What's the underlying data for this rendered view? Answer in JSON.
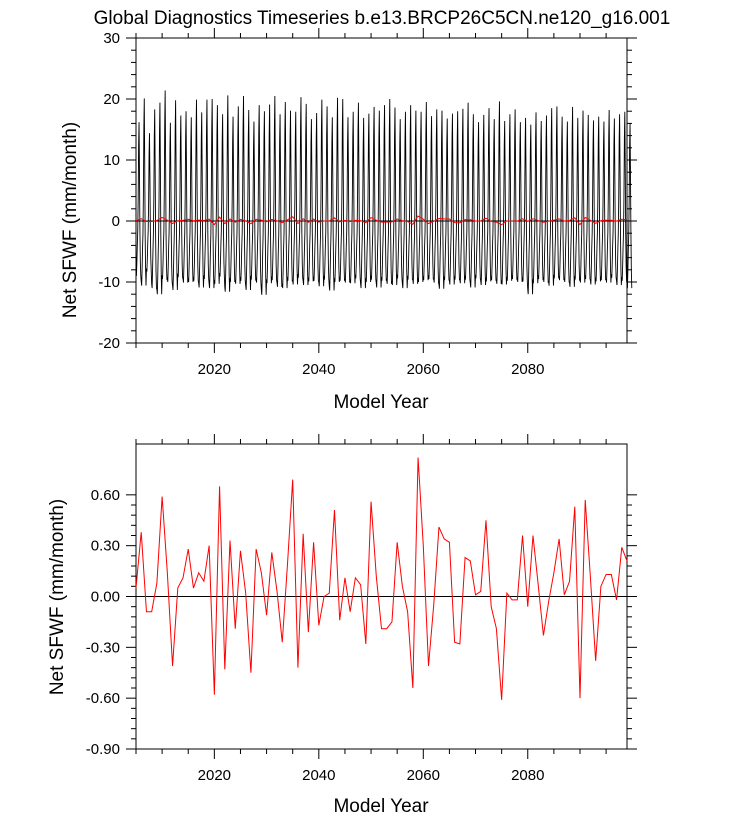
{
  "title": "Global Diagnostics Timeseries b.e13.BRCP26C5CN.ne120_g16.001",
  "chart_data": [
    {
      "type": "line",
      "xlabel": "Model Year",
      "ylabel": "Net SFWF (mm/month)",
      "xlim": [
        2005,
        2099
      ],
      "ylim": [
        -20,
        30
      ],
      "x_ticks": [
        2020,
        2040,
        2060,
        2080
      ],
      "y_ticks": [
        -20,
        -10,
        0,
        10,
        20,
        30
      ],
      "y_tick_labels": [
        "-20",
        "-10",
        "0",
        "10",
        "20",
        "30"
      ],
      "grid": false,
      "zero_line": true,
      "series": [
        {
          "color": "#000000",
          "style": "monthly seasonal cycle",
          "monthly_pattern": [
            -7.5,
            -8.0,
            -6.0,
            -3.5,
            -1.5,
            4.0,
            14.0,
            18.5,
            9.0,
            -1.5,
            -6.0,
            -8.0
          ],
          "annual_peak": [
            16.2,
            20.1,
            14.4,
            18.3,
            19.4,
            21.4,
            16.1,
            19.8,
            17.3,
            18.0,
            17.0,
            19.9,
            17.8,
            19.9,
            20.0,
            19.0,
            17.5,
            20.6,
            17.1,
            18.8,
            20.5,
            18.2,
            16.3,
            19.0,
            18.0,
            19.1,
            20.5,
            17.5,
            19.5,
            18.1,
            17.9,
            20.3,
            19.2,
            16.7,
            17.7,
            19.9,
            18.8,
            17.0,
            20.2,
            20.0,
            17.0,
            17.9,
            19.4,
            16.9,
            17.6,
            18.7,
            18.1,
            19.0,
            20.0,
            18.6,
            16.7,
            17.9,
            19.0,
            18.1,
            17.9,
            19.5,
            17.2,
            18.3,
            18.1,
            16.8,
            17.6,
            18.0,
            18.4,
            19.4,
            17.5,
            16.2,
            17.4,
            18.5,
            16.7,
            19.6,
            16.4,
            17.5,
            18.3,
            16.2,
            16.9,
            15.8,
            17.8,
            16.4,
            17.3,
            18.5,
            18.8,
            17.1,
            16.3,
            18.7,
            16.9,
            18.1,
            17.4,
            16.5,
            17.1,
            16.3,
            18.2,
            16.8,
            17.5,
            17.9,
            16.0
          ],
          "annual_trough": [
            -9.0,
            -10.6,
            -8.3,
            -11.0,
            -12.0,
            -9.5,
            -10.0,
            -11.3,
            -9.2,
            -10.1,
            -10.0,
            -9.8,
            -10.9,
            -9.5,
            -11.0,
            -10.3,
            -9.1,
            -11.6,
            -10.0,
            -10.3,
            -9.8,
            -11.3,
            -9.6,
            -10.1,
            -12.1,
            -10.2,
            -9.7,
            -10.8,
            -11.0,
            -9.8,
            -10.4,
            -9.3,
            -10.5,
            -9.9,
            -9.8,
            -10.7,
            -9.6,
            -11.4,
            -10.0,
            -9.8,
            -10.1,
            -10.2,
            -9.4,
            -11.0,
            -10.0,
            -9.6,
            -10.9,
            -9.8,
            -10.3,
            -10.5,
            -9.4,
            -11.0,
            -9.6,
            -10.3,
            -10.0,
            -9.7,
            -9.5,
            -10.1,
            -11.1,
            -9.7,
            -10.4,
            -9.6,
            -10.2,
            -9.6,
            -10.9,
            -9.4,
            -10.5,
            -9.9,
            -9.7,
            -10.3,
            -10.4,
            -9.8,
            -9.5,
            -10.0,
            -9.9,
            -12.0,
            -10.2,
            -9.5,
            -10.0,
            -10.6,
            -9.4,
            -9.7,
            -10.0,
            -10.8,
            -9.6,
            -10.1,
            -9.5,
            -10.4,
            -9.9,
            -9.7,
            -10.1,
            -9.3,
            -10.5,
            -9.8,
            -11.0
          ]
        },
        {
          "color": "#ff0000",
          "style": "annual mean",
          "source": "lower panel"
        }
      ]
    },
    {
      "type": "line",
      "xlabel": "Model Year",
      "ylabel": "Net SFWF (mm/month)",
      "xlim": [
        2005,
        2099
      ],
      "ylim": [
        -0.9,
        0.9
      ],
      "x_ticks": [
        2020,
        2040,
        2060,
        2080
      ],
      "y_ticks": [
        -0.9,
        -0.6,
        -0.3,
        0.0,
        0.3,
        0.6
      ],
      "y_tick_labels": [
        "-0.90",
        "-0.60",
        "-0.30",
        "0.00",
        "0.30",
        "0.60"
      ],
      "grid": false,
      "zero_line": true,
      "series": [
        {
          "color": "#ff0000",
          "x": [
            2005,
            2006,
            2007,
            2008,
            2009,
            2010,
            2011,
            2012,
            2013,
            2014,
            2015,
            2016,
            2017,
            2018,
            2019,
            2020,
            2021,
            2022,
            2023,
            2024,
            2025,
            2026,
            2027,
            2028,
            2029,
            2030,
            2031,
            2032,
            2033,
            2034,
            2035,
            2036,
            2037,
            2038,
            2039,
            2040,
            2041,
            2042,
            2043,
            2044,
            2045,
            2046,
            2047,
            2048,
            2049,
            2050,
            2051,
            2052,
            2053,
            2054,
            2055,
            2056,
            2057,
            2058,
            2059,
            2060,
            2061,
            2062,
            2063,
            2064,
            2065,
            2066,
            2067,
            2068,
            2069,
            2070,
            2071,
            2072,
            2073,
            2074,
            2075,
            2076,
            2077,
            2078,
            2079,
            2080,
            2081,
            2082,
            2083,
            2084,
            2085,
            2086,
            2087,
            2088,
            2089,
            2090,
            2091,
            2092,
            2093,
            2094,
            2095,
            2096,
            2097,
            2098,
            2099
          ],
          "values": [
            0.05,
            0.38,
            -0.09,
            -0.09,
            0.08,
            0.59,
            0.14,
            -0.41,
            0.05,
            0.11,
            0.28,
            0.05,
            0.14,
            0.09,
            0.3,
            -0.58,
            0.65,
            -0.43,
            0.33,
            -0.19,
            0.27,
            0.02,
            -0.45,
            0.28,
            0.14,
            -0.11,
            0.26,
            0.03,
            -0.27,
            0.19,
            0.69,
            -0.42,
            0.37,
            -0.21,
            0.32,
            -0.17,
            0.0,
            0.02,
            0.51,
            -0.14,
            0.11,
            -0.09,
            0.11,
            0.07,
            -0.28,
            0.56,
            0.12,
            -0.19,
            -0.19,
            -0.15,
            0.32,
            0.06,
            -0.09,
            -0.54,
            0.82,
            0.3,
            -0.41,
            -0.05,
            0.41,
            0.34,
            0.32,
            -0.27,
            -0.28,
            0.23,
            0.21,
            0.01,
            0.03,
            0.45,
            -0.06,
            -0.19,
            -0.61,
            0.02,
            -0.02,
            -0.02,
            0.36,
            -0.06,
            0.36,
            0.07,
            -0.23,
            -0.03,
            0.14,
            0.34,
            0.01,
            0.09,
            0.53,
            -0.6,
            0.57,
            0.11,
            -0.38,
            0.06,
            0.13,
            0.13,
            -0.02,
            0.29,
            0.21
          ]
        }
      ]
    }
  ]
}
